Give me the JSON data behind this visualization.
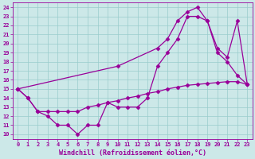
{
  "xlabel": "Windchill (Refroidissement éolien,°C)",
  "xlim": [
    -0.5,
    23.5
  ],
  "ylim": [
    9.5,
    24.5
  ],
  "xticks": [
    0,
    1,
    2,
    3,
    4,
    5,
    6,
    7,
    8,
    9,
    10,
    11,
    12,
    13,
    14,
    15,
    16,
    17,
    18,
    19,
    20,
    21,
    22,
    23
  ],
  "yticks": [
    10,
    11,
    12,
    13,
    14,
    15,
    16,
    17,
    18,
    19,
    20,
    21,
    22,
    23,
    24
  ],
  "background_color": "#cce8e8",
  "line_color": "#990099",
  "grid_color": "#99cccc",
  "line1_x": [
    0,
    1,
    2,
    3,
    4,
    5,
    6,
    7,
    8,
    9,
    10,
    11,
    12,
    13,
    14,
    15,
    16,
    17,
    18,
    19,
    20,
    21,
    22,
    23
  ],
  "line1_y": [
    15,
    14,
    12.5,
    12,
    11,
    11,
    10,
    11,
    11,
    13.5,
    13,
    13,
    13,
    14,
    17.5,
    19.0,
    20.5,
    23.0,
    23.0,
    22.5,
    19.0,
    18.0,
    16.5,
    15.5
  ],
  "line2_x": [
    0,
    10,
    14,
    15,
    16,
    17,
    18,
    19,
    20,
    21,
    22,
    23
  ],
  "line2_y": [
    15,
    17.5,
    19.5,
    20.5,
    22.5,
    23.5,
    24.0,
    22.5,
    19.5,
    18.5,
    22.5,
    15.5
  ],
  "line3_x": [
    0,
    1,
    2,
    3,
    4,
    5,
    6,
    7,
    8,
    9,
    10,
    11,
    12,
    13,
    14,
    15,
    16,
    17,
    18,
    19,
    20,
    21,
    22,
    23
  ],
  "line3_y": [
    15,
    14,
    12.5,
    12.5,
    12.5,
    12.5,
    12.5,
    13.0,
    13.2,
    13.5,
    13.7,
    14.0,
    14.2,
    14.5,
    14.7,
    15.0,
    15.2,
    15.4,
    15.5,
    15.6,
    15.7,
    15.8,
    15.8,
    15.5
  ],
  "marker": "D",
  "markersize": 2.5,
  "linewidth": 0.9,
  "tick_fontsize": 5.0,
  "label_fontsize": 6.0
}
